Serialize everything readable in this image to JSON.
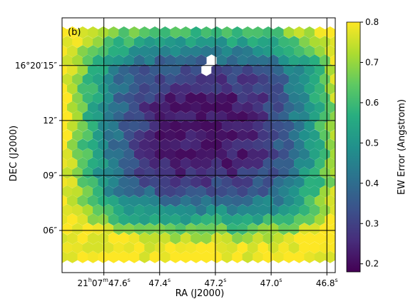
{
  "chart_data": {
    "type": "heatmap",
    "panel_label": "(b)",
    "xlabel": "RA (J2000)",
    "ylabel": "DEC (J2000)",
    "x_ticks": [
      {
        "main": "21",
        "sup1": "h",
        "mid": "07",
        "sup2": "m",
        "tail": "47.6",
        "sup3": "s",
        "value_s": 47.6
      },
      {
        "main": "47.4",
        "sup": "s",
        "value_s": 47.4
      },
      {
        "main": "47.2",
        "sup": "s",
        "value_s": 47.2
      },
      {
        "main": "47.0",
        "sup": "s",
        "value_s": 47.0
      },
      {
        "main": "46.8",
        "sup": "s",
        "value_s": 46.8
      }
    ],
    "y_ticks": [
      {
        "label": "16°20′15″",
        "value_arcsec": 15
      },
      {
        "label": "12″",
        "value_arcsec": 12
      },
      {
        "label": "09″",
        "value_arcsec": 9
      },
      {
        "label": "06″",
        "value_arcsec": 6
      }
    ],
    "x_range_s": [
      47.75,
      46.77
    ],
    "y_range_arcsec": [
      3.7,
      17.6
    ],
    "grid": true,
    "colorbar": {
      "label": "EW Error (Angstrom)",
      "ticks": [
        "0.2",
        "0.3",
        "0.4",
        "0.5",
        "0.6",
        "0.7",
        "0.8"
      ],
      "range": [
        0.18,
        0.8
      ],
      "colormap": "viridis"
    },
    "field": {
      "ra_range_s": [
        47.75,
        46.77
      ],
      "dec_range_arcsec": [
        4.55,
        16.8
      ],
      "columns": 27,
      "rows": 25,
      "center_ra_s": 47.24,
      "center_dec_arcsec": 11.5,
      "min_value": 0.2,
      "max_value": 0.8,
      "missing_cell": {
        "ra_s": 47.22,
        "dec_arcsec": 15.0
      }
    }
  }
}
